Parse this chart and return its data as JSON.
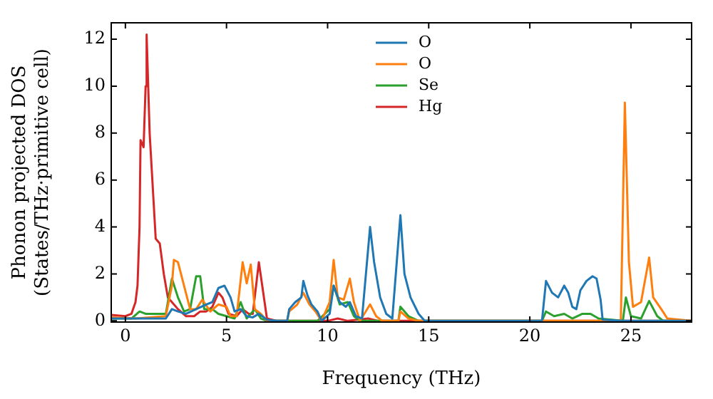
{
  "chart_data": {
    "type": "line",
    "xlabel": "Frequency (THz)",
    "ylabel": "Phonon projected DOS\n(States/THz·primitive cell)",
    "xlim": [
      -0.7,
      28
    ],
    "ylim": [
      -0.05,
      12.7
    ],
    "xticks": [
      0,
      5,
      10,
      15,
      20,
      25
    ],
    "yticks": [
      0,
      2,
      4,
      6,
      8,
      10,
      12
    ],
    "grid": false,
    "legend": "top",
    "marker": "none",
    "line_style": "solid",
    "series": [
      {
        "name": "O",
        "color": "#1f77b4",
        "x": [
          -0.7,
          2,
          2.3,
          2.6,
          3,
          3.5,
          4,
          4.3,
          4.6,
          4.9,
          5.2,
          5.4,
          5.7,
          6,
          6.3,
          6.6,
          7,
          7.5,
          8,
          8.1,
          8.4,
          8.7,
          8.8,
          9,
          9.2,
          9.5,
          9.7,
          10.1,
          10.3,
          10.6,
          10.9,
          11.1,
          11.4,
          11.7,
          12.1,
          12.3,
          12.6,
          12.9,
          13.2,
          13.6,
          13.8,
          14.1,
          14.5,
          14.8,
          20.6,
          20.8,
          21.1,
          21.4,
          21.7,
          21.9,
          22.1,
          22.3,
          22.5,
          22.8,
          23.1,
          23.3,
          23.5,
          23.6,
          24.6,
          28
        ],
        "values": [
          0.1,
          0.1,
          0.5,
          0.4,
          0.3,
          0.5,
          0.7,
          0.8,
          1.4,
          1.5,
          1.0,
          0.4,
          0.5,
          0.2,
          0.15,
          0.3,
          0.05,
          0,
          0,
          0.5,
          0.8,
          1.0,
          1.7,
          1.1,
          0.7,
          0.4,
          0,
          0.3,
          1.5,
          0.8,
          0.6,
          0.8,
          0.2,
          0.1,
          4.0,
          2.5,
          1.0,
          0.3,
          0.1,
          4.5,
          2.0,
          1.0,
          0.3,
          0,
          0,
          1.7,
          1.2,
          1.0,
          1.5,
          1.2,
          0.6,
          0.5,
          1.3,
          1.7,
          1.9,
          1.8,
          0.9,
          0.05,
          0,
          0
        ]
      },
      {
        "name": "O",
        "color": "#ff7f0e",
        "x": [
          -0.7,
          0.5,
          2,
          2.3,
          2.4,
          2.6,
          2.9,
          3.2,
          3.5,
          3.8,
          4.2,
          4.6,
          5.0,
          5.2,
          5.5,
          5.8,
          6.0,
          6.2,
          6.4,
          6.7,
          7,
          8,
          8.1,
          8.5,
          8.8,
          9.1,
          9.4,
          9.7,
          10.1,
          10.3,
          10.5,
          10.8,
          11.1,
          11.3,
          11.6,
          12.1,
          12.4,
          12.7,
          13.5,
          13.6,
          14,
          14.5,
          24.5,
          24.7,
          24.9,
          25.1,
          25.5,
          25.9,
          26.1,
          26.5,
          26.8,
          28
        ],
        "values": [
          0.15,
          0.1,
          0.2,
          1.5,
          2.6,
          2.5,
          1.5,
          0.5,
          0.5,
          0.9,
          0.4,
          0.7,
          0.6,
          0.2,
          0.2,
          2.5,
          1.6,
          2.4,
          0.5,
          0.3,
          0,
          0,
          0.4,
          0.7,
          1.2,
          0.7,
          0.4,
          0,
          0.8,
          2.6,
          1.0,
          0.9,
          1.8,
          0.8,
          0,
          0.7,
          0.2,
          0,
          0,
          0.4,
          0.1,
          0,
          0,
          9.3,
          2.5,
          0.6,
          0.8,
          2.7,
          1.0,
          0.5,
          0.1,
          0
        ]
      },
      {
        "name": "Se",
        "color": "#2ca02c",
        "x": [
          -0.7,
          0.3,
          0.7,
          1.0,
          2,
          2.3,
          2.6,
          2.9,
          3.2,
          3.5,
          3.7,
          3.9,
          4.3,
          4.6,
          5.0,
          5.4,
          5.7,
          6,
          6.4,
          6.7,
          7,
          9.5,
          10.1,
          10.3,
          10.6,
          11.0,
          11.3,
          11.6,
          13.5,
          13.6,
          14,
          14.5,
          20.6,
          20.8,
          21.2,
          21.7,
          22.1,
          22.6,
          23.0,
          23.4,
          24.6,
          24.75,
          25.0,
          25.5,
          25.9,
          26.3,
          26.6,
          28
        ],
        "values": [
          0.1,
          0.1,
          0.4,
          0.3,
          0.3,
          1.8,
          1.0,
          0.4,
          0.5,
          1.9,
          1.9,
          0.5,
          0.5,
          0.3,
          0.2,
          0.1,
          0.8,
          0.1,
          0.5,
          0.1,
          0,
          0,
          0.5,
          1.5,
          0.7,
          0.8,
          0.2,
          0,
          0,
          0.6,
          0.2,
          0,
          0,
          0.4,
          0.2,
          0.3,
          0.1,
          0.3,
          0.3,
          0.1,
          0,
          1.0,
          0.2,
          0.1,
          0.85,
          0.2,
          0,
          0
        ]
      },
      {
        "name": "Hg",
        "color": "#d62728",
        "x": [
          -0.7,
          0,
          0.3,
          0.5,
          0.6,
          0.7,
          0.75,
          0.9,
          1.0,
          1.05,
          1.2,
          1.4,
          1.5,
          1.7,
          1.9,
          2.1,
          2.3,
          2.6,
          3,
          3.4,
          3.7,
          4.0,
          4.3,
          4.6,
          4.8,
          5.1,
          5.5,
          5.8,
          6.1,
          6.3,
          6.6,
          6.8,
          7.0,
          7.5,
          10,
          10.5,
          11,
          12,
          12.5,
          28
        ],
        "values": [
          0.25,
          0.2,
          0.3,
          0.8,
          1.5,
          4,
          7.7,
          7.4,
          10,
          12.2,
          8,
          5,
          3.5,
          3.3,
          2,
          1,
          0.8,
          0.5,
          0.2,
          0.2,
          0.4,
          0.4,
          0.6,
          1.2,
          1.0,
          0.3,
          0.2,
          0.5,
          0.3,
          0.3,
          2.5,
          1.3,
          0.1,
          0,
          0,
          0.1,
          0,
          0.1,
          0,
          0
        ]
      }
    ]
  }
}
